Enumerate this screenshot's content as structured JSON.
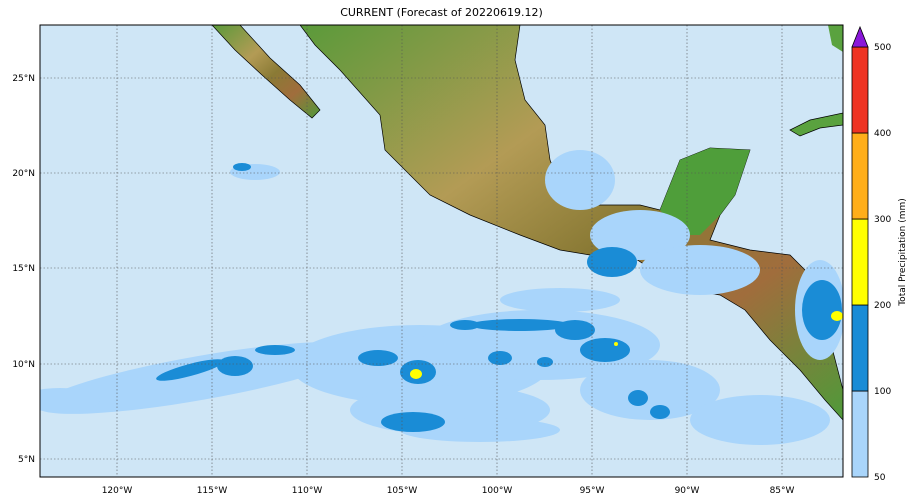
{
  "title": "CURRENT (Forecast of 20220619.12)",
  "map": {
    "projection": "lat-lon",
    "lon_labels": [
      "120°W",
      "115°W",
      "110°W",
      "105°W",
      "100°W",
      "95°W",
      "90°W",
      "85°W"
    ],
    "lat_labels": [
      "25°N",
      "20°N",
      "15°N",
      "10°N",
      "5°N"
    ],
    "gridlines": true,
    "ocean_color": "#cfe6f6"
  },
  "colorbar": {
    "label": "Total Precipitation (mm)",
    "ticks": [
      "50",
      "100",
      "200",
      "300",
      "400",
      "500"
    ],
    "colors": [
      "#a9d5fb",
      "#1a8cd6",
      "#ffff00",
      "#ffae1a",
      "#ee3322"
    ],
    "extend_color": "#8a17d9"
  }
}
